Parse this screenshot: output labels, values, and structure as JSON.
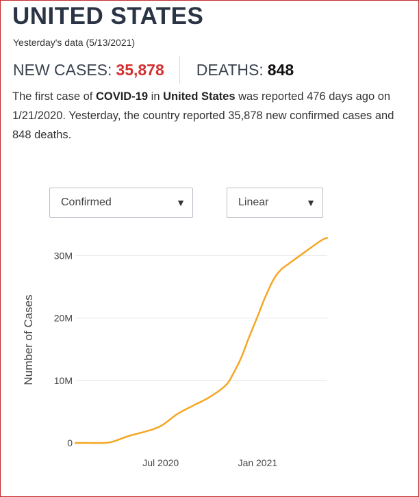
{
  "header": {
    "title": "UNITED STATES",
    "subtitle": "Yesterday's data (5/13/2021)"
  },
  "stats": {
    "new_cases_label": "NEW CASES:",
    "new_cases_value": "35,878",
    "deaths_label": "DEATHS:",
    "deaths_value": "848"
  },
  "summary": {
    "part1": "The first case of ",
    "bold1": "COVID-19",
    "part2": " in ",
    "bold2": "United States",
    "part3": " was reported 476 days ago on 1/21/2020. Yesterday, the country reported 35,878 new confirmed cases and 848 deaths."
  },
  "controls": {
    "type_value": "Confirmed",
    "scale_value": "Linear"
  },
  "colors": {
    "accent_red": "#d32f2f",
    "line": "#f5a623"
  },
  "chart_data": {
    "type": "line",
    "ylabel": "Number of Cases",
    "xlabel": "",
    "x_tick_labels": [
      {
        "label": "Jul 2020",
        "date": "2020-07-01"
      },
      {
        "label": "Jan 2021",
        "date": "2021-01-01"
      }
    ],
    "y_tick_labels": [
      {
        "label": "0",
        "value": 0
      },
      {
        "label": "10M",
        "value": 10000000
      },
      {
        "label": "20M",
        "value": 20000000
      },
      {
        "label": "30M",
        "value": 30000000
      }
    ],
    "xlim": [
      "2020-01-21",
      "2021-05-13"
    ],
    "ylim": [
      0,
      33000000
    ],
    "grid": true,
    "series": [
      {
        "x": [
          "2020-01-21",
          "2020-02-15",
          "2020-03-15",
          "2020-04-01",
          "2020-05-01",
          "2020-06-01",
          "2020-07-01",
          "2020-08-01",
          "2020-09-01",
          "2020-10-01",
          "2020-11-01",
          "2020-11-15",
          "2020-12-01",
          "2020-12-15",
          "2021-01-01",
          "2021-01-15",
          "2021-02-01",
          "2021-02-15",
          "2021-03-01",
          "2021-04-01",
          "2021-05-01",
          "2021-05-13"
        ],
        "y": [
          0,
          15,
          3500,
          200000,
          1100000,
          1800000,
          2700000,
          4600000,
          6000000,
          7300000,
          9200000,
          11000000,
          13700000,
          16800000,
          20300000,
          23300000,
          26300000,
          27800000,
          28700000,
          30600000,
          32400000,
          32850000
        ]
      }
    ]
  }
}
